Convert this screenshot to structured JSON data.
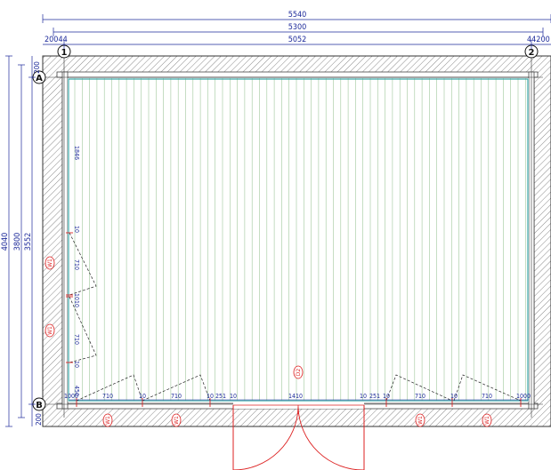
{
  "colors": {
    "dimension": "#1d2a9a",
    "wall_hatch": "#777777",
    "wall_outline": "#333333",
    "floor_board": "#9fc79b",
    "inner_frame": "#3aa6a6",
    "window_tag": "#dd2222",
    "door_lines": "#dd2222",
    "opening_swing": "#222222"
  },
  "dimensions": {
    "top_overall": "5540",
    "top_second": "5300",
    "top_inner": "5052",
    "top_left_offset": "20044",
    "top_right_offset": "44200",
    "left_overall": "4040",
    "left_second": "3800",
    "left_inner": "3552",
    "left_top_offset": "200",
    "left_bottom_offset": "200",
    "left_wall_1": "1846",
    "left_wall_2": "10",
    "left_wall_3": "710",
    "left_wall_4": "1010",
    "left_wall_5": "710",
    "left_wall_6": "10",
    "left_wall_7": "450",
    "bottom_wall": [
      "1000",
      "710",
      "10",
      "710",
      "10",
      "251",
      "10",
      "1410",
      "10",
      "251",
      "10",
      "710",
      "10",
      "710",
      "1000"
    ]
  },
  "axes": {
    "top_left": "1",
    "top_right": "2",
    "left_top": "A",
    "left_bottom": "B"
  },
  "tags": {
    "window_left_1": "W1",
    "window_left_2": "W1",
    "window_bottom_1": "W1",
    "window_bottom_2": "W1",
    "window_bottom_3": "W1",
    "window_bottom_4": "W1",
    "door_center": "D2"
  }
}
